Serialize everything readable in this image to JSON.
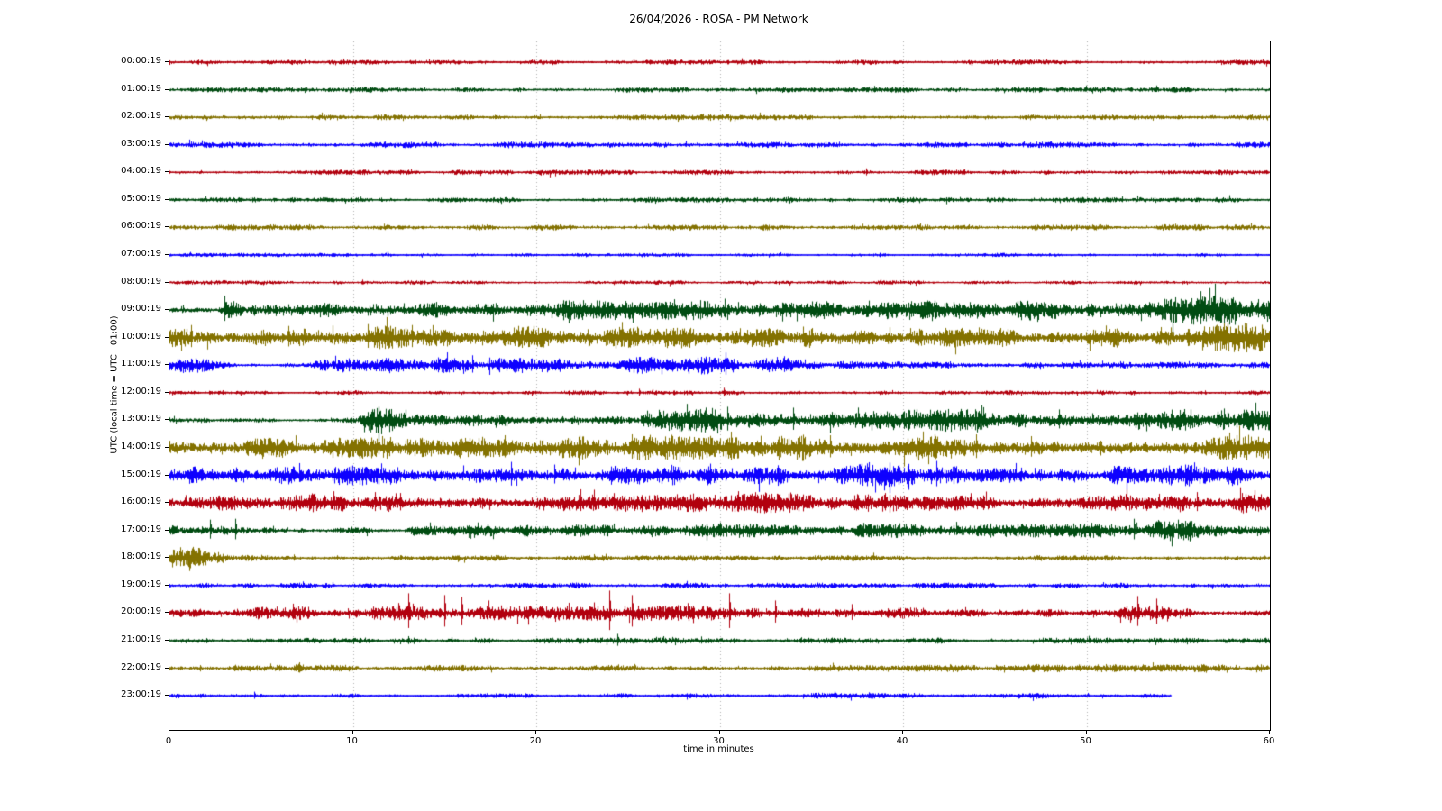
{
  "chart_data": {
    "type": "line",
    "subtype": "seismogram-helicorder-dayplot",
    "title": "26/04/2026 - ROSA - PM Network",
    "xlabel": "time in minutes",
    "ylabel": "UTC (local time = UTC - 01:00)",
    "xlim": [
      0,
      60
    ],
    "xticks": [
      0,
      10,
      20,
      30,
      40,
      50,
      60
    ],
    "grid": "vertical-dotted",
    "grid_color": "#b0b0b0",
    "trace_colors": [
      "#B2000F",
      "#004C12",
      "#847200",
      "#0E01FF"
    ],
    "rows": [
      {
        "label": "00:00:19",
        "color": 0,
        "end": 60,
        "env": [
          [
            0,
            2.1
          ],
          [
            60,
            2.1
          ]
        ],
        "spikes": []
      },
      {
        "label": "01:00:19",
        "color": 1,
        "end": 60,
        "env": [
          [
            0,
            2.2
          ],
          [
            60,
            2.2
          ]
        ],
        "spikes": []
      },
      {
        "label": "02:00:19",
        "color": 2,
        "end": 60,
        "env": [
          [
            0,
            2.2
          ],
          [
            60,
            2.2
          ]
        ],
        "spikes": []
      },
      {
        "label": "03:00:19",
        "color": 3,
        "end": 60,
        "env": [
          [
            0,
            2.5
          ],
          [
            60,
            2.5
          ]
        ],
        "spikes": []
      },
      {
        "label": "04:00:19",
        "color": 0,
        "end": 60,
        "env": [
          [
            0,
            2.1
          ],
          [
            60,
            2.1
          ]
        ],
        "spikes": [
          [
            38,
            4.5
          ]
        ]
      },
      {
        "label": "05:00:19",
        "color": 1,
        "end": 60,
        "env": [
          [
            0,
            2.1
          ],
          [
            32.5,
            2.1
          ],
          [
            33.5,
            3.6
          ],
          [
            34.5,
            2.1
          ],
          [
            60,
            2.1
          ]
        ],
        "spikes": []
      },
      {
        "label": "06:00:19",
        "color": 2,
        "end": 60,
        "env": [
          [
            0,
            2.4
          ],
          [
            60,
            2.4
          ]
        ],
        "spikes": []
      },
      {
        "label": "07:00:19",
        "color": 3,
        "end": 60,
        "env": [
          [
            0,
            1.7
          ],
          [
            60,
            1.7
          ]
        ],
        "spikes": []
      },
      {
        "label": "08:00:19",
        "color": 0,
        "end": 60,
        "env": [
          [
            0,
            1.7
          ],
          [
            60,
            1.7
          ]
        ],
        "spikes": []
      },
      {
        "label": "09:00:19",
        "color": 1,
        "end": 60,
        "env": [
          [
            0,
            3
          ],
          [
            2.6,
            3.5
          ],
          [
            3.2,
            11
          ],
          [
            4,
            6
          ],
          [
            8,
            6.5
          ],
          [
            14,
            7
          ],
          [
            20,
            7.5
          ],
          [
            26,
            8
          ],
          [
            31,
            7
          ],
          [
            36,
            7
          ],
          [
            42,
            7.5
          ],
          [
            47,
            8.5
          ],
          [
            51,
            9
          ],
          [
            55,
            11
          ],
          [
            57,
            12
          ],
          [
            60,
            13
          ]
        ],
        "spikes": [
          [
            3,
            16
          ],
          [
            27.5,
            12
          ],
          [
            56.2,
            21
          ],
          [
            58,
            14
          ]
        ]
      },
      {
        "label": "10:00:19",
        "color": 2,
        "end": 60,
        "env": [
          [
            0,
            9
          ],
          [
            2,
            8.5
          ],
          [
            5,
            9.5
          ],
          [
            9,
            10
          ],
          [
            13,
            9
          ],
          [
            18,
            8.5
          ],
          [
            23,
            9
          ],
          [
            28,
            8.5
          ],
          [
            33,
            9
          ],
          [
            38,
            8.5
          ],
          [
            44,
            8
          ],
          [
            50,
            8
          ],
          [
            55,
            9
          ],
          [
            58,
            11
          ],
          [
            60,
            13
          ]
        ],
        "spikes": [
          [
            1.2,
            14
          ],
          [
            6.5,
            13
          ],
          [
            10.8,
            15
          ],
          [
            13.2,
            14
          ],
          [
            19,
            13
          ],
          [
            25.5,
            12
          ],
          [
            57.5,
            16
          ]
        ]
      },
      {
        "label": "11:00:19",
        "color": 3,
        "end": 60,
        "env": [
          [
            0,
            6
          ],
          [
            3.2,
            5.5
          ],
          [
            3.8,
            2.2
          ],
          [
            7.6,
            2.2
          ],
          [
            8.4,
            5
          ],
          [
            12,
            6
          ],
          [
            17,
            6
          ],
          [
            22,
            6
          ],
          [
            27,
            6.5
          ],
          [
            30,
            7
          ],
          [
            33,
            6
          ],
          [
            35.5,
            4.5
          ],
          [
            37.5,
            3
          ],
          [
            40,
            2.7
          ],
          [
            60,
            2.7
          ]
        ],
        "spikes": [
          [
            16.5,
            11
          ],
          [
            30.3,
            14
          ],
          [
            33.5,
            10
          ]
        ]
      },
      {
        "label": "12:00:19",
        "color": 0,
        "end": 60,
        "env": [
          [
            0,
            1.9
          ],
          [
            60,
            1.9
          ]
        ],
        "spikes": [
          [
            25.6,
            4.5
          ],
          [
            30.2,
            5.5
          ]
        ]
      },
      {
        "label": "13:00:19",
        "color": 1,
        "end": 60,
        "env": [
          [
            0,
            2.1
          ],
          [
            10.2,
            2.1
          ],
          [
            10.8,
            10
          ],
          [
            12.5,
            11
          ],
          [
            14.5,
            8
          ],
          [
            18,
            7
          ],
          [
            20.5,
            4.5
          ],
          [
            25.5,
            4.5
          ],
          [
            27,
            9
          ],
          [
            30,
            10
          ],
          [
            33,
            9
          ],
          [
            36,
            8
          ],
          [
            40,
            8
          ],
          [
            44,
            9
          ],
          [
            48,
            7.5
          ],
          [
            52,
            7.5
          ],
          [
            56,
            8.5
          ],
          [
            60,
            10
          ]
        ],
        "spikes": [
          [
            11.4,
            15
          ],
          [
            30.4,
            15
          ],
          [
            34,
            14
          ],
          [
            48.5,
            12
          ],
          [
            57.5,
            13
          ]
        ]
      },
      {
        "label": "14:00:19",
        "color": 2,
        "end": 60,
        "env": [
          [
            0,
            7.5
          ],
          [
            3,
            8
          ],
          [
            8,
            8.5
          ],
          [
            12,
            9
          ],
          [
            16,
            8
          ],
          [
            21,
            9
          ],
          [
            25,
            10
          ],
          [
            28,
            10
          ],
          [
            31,
            9
          ],
          [
            34,
            10
          ],
          [
            38,
            9.5
          ],
          [
            42,
            10
          ],
          [
            46,
            9
          ],
          [
            50,
            8
          ],
          [
            54,
            8.5
          ],
          [
            60,
            10
          ]
        ],
        "spikes": [
          [
            18.3,
            14
          ],
          [
            25.2,
            15
          ],
          [
            30.6,
            18
          ],
          [
            36,
            14
          ],
          [
            44,
            15
          ],
          [
            47,
            13
          ],
          [
            58.2,
            14
          ]
        ]
      },
      {
        "label": "15:00:19",
        "color": 3,
        "end": 60,
        "env": [
          [
            0,
            7
          ],
          [
            6,
            7
          ],
          [
            11,
            7.5
          ],
          [
            15,
            8
          ],
          [
            18,
            10
          ],
          [
            20,
            8
          ],
          [
            25,
            7
          ],
          [
            28.5,
            9
          ],
          [
            31,
            8
          ],
          [
            35,
            7.5
          ],
          [
            40.5,
            10
          ],
          [
            43,
            8
          ],
          [
            47,
            7
          ],
          [
            51,
            7
          ],
          [
            55,
            8
          ],
          [
            60,
            8
          ]
        ],
        "spikes": [
          [
            18.6,
            15
          ],
          [
            21,
            12
          ],
          [
            29.5,
            13
          ],
          [
            41.8,
            16
          ],
          [
            55.4,
            12
          ]
        ]
      },
      {
        "label": "16:00:19",
        "color": 0,
        "end": 60,
        "env": [
          [
            0,
            5
          ],
          [
            4,
            6
          ],
          [
            7,
            7.5
          ],
          [
            11,
            8
          ],
          [
            14,
            7
          ],
          [
            18,
            6
          ],
          [
            23,
            6.5
          ],
          [
            27,
            7
          ],
          [
            30,
            8
          ],
          [
            33,
            8
          ],
          [
            37,
            7
          ],
          [
            41,
            6
          ],
          [
            46,
            6
          ],
          [
            51,
            6.5
          ],
          [
            55,
            7.5
          ],
          [
            58,
            8
          ],
          [
            60,
            7
          ]
        ],
        "spikes": [
          [
            11.2,
            12
          ],
          [
            12.6,
            11
          ],
          [
            31,
            13
          ],
          [
            39,
            11
          ],
          [
            56,
            12
          ],
          [
            58.5,
            11
          ]
        ]
      },
      {
        "label": "17:00:19",
        "color": 1,
        "end": 60,
        "env": [
          [
            0,
            6
          ],
          [
            1.6,
            7
          ],
          [
            2.6,
            5
          ],
          [
            4,
            2.6
          ],
          [
            12.5,
            2.6
          ],
          [
            13.5,
            5
          ],
          [
            19,
            5
          ],
          [
            25,
            5
          ],
          [
            31,
            5.5
          ],
          [
            36,
            5.5
          ],
          [
            38,
            6
          ],
          [
            42,
            5
          ],
          [
            47,
            5.5
          ],
          [
            50,
            6
          ],
          [
            52,
            8
          ],
          [
            54,
            9
          ],
          [
            56,
            8
          ],
          [
            58,
            6.5
          ],
          [
            60,
            7.5
          ]
        ],
        "spikes": [
          [
            2.2,
            12
          ],
          [
            3.6,
            13
          ],
          [
            30,
            9
          ],
          [
            52.6,
            13
          ],
          [
            55,
            12
          ]
        ]
      },
      {
        "label": "18:00:19",
        "color": 2,
        "end": 60,
        "env": [
          [
            0,
            8
          ],
          [
            1,
            9
          ],
          [
            2.2,
            7
          ],
          [
            3.5,
            5
          ],
          [
            4.6,
            2.3
          ],
          [
            60,
            2.3
          ]
        ],
        "spikes": [
          [
            0.6,
            12
          ],
          [
            1.6,
            11
          ],
          [
            6.8,
            4
          ]
        ]
      },
      {
        "label": "19:00:19",
        "color": 3,
        "end": 60,
        "env": [
          [
            0,
            2.3
          ],
          [
            60,
            2.3
          ]
        ],
        "spikes": []
      },
      {
        "label": "20:00:19",
        "color": 0,
        "end": 60,
        "env": [
          [
            0,
            3
          ],
          [
            2.5,
            3.5
          ],
          [
            4,
            5
          ],
          [
            8,
            5.5
          ],
          [
            12,
            6
          ],
          [
            16,
            6
          ],
          [
            20,
            5.5
          ],
          [
            24,
            6
          ],
          [
            28,
            6
          ],
          [
            31,
            6
          ],
          [
            34,
            5
          ],
          [
            38,
            5
          ],
          [
            41,
            4
          ],
          [
            43,
            3.2
          ],
          [
            48,
            3.2
          ],
          [
            51.5,
            3.4
          ],
          [
            52.5,
            6
          ],
          [
            55,
            6
          ],
          [
            56.5,
            3.2
          ],
          [
            60,
            3.2
          ]
        ],
        "spikes": [
          [
            13,
            22
          ],
          [
            15,
            20
          ],
          [
            15.9,
            18
          ],
          [
            24,
            25
          ],
          [
            25.2,
            20
          ],
          [
            30.5,
            22
          ],
          [
            33,
            14
          ],
          [
            37.2,
            10
          ],
          [
            52.8,
            19
          ],
          [
            53.8,
            16
          ]
        ]
      },
      {
        "label": "21:00:19",
        "color": 1,
        "end": 60,
        "env": [
          [
            0,
            2.3
          ],
          [
            60,
            2.3
          ]
        ],
        "spikes": [
          [
            13,
            5
          ],
          [
            24.4,
            7.5
          ]
        ]
      },
      {
        "label": "22:00:19",
        "color": 2,
        "end": 60,
        "env": [
          [
            0,
            2.6
          ],
          [
            6.7,
            2.6
          ],
          [
            7,
            4.5
          ],
          [
            7.5,
            2.6
          ],
          [
            40,
            2.6
          ],
          [
            44,
            3.1
          ],
          [
            60,
            3.1
          ]
        ],
        "spikes": [
          [
            7.1,
            6.5
          ]
        ]
      },
      {
        "label": "23:00:19",
        "color": 3,
        "end": 54.6,
        "env": [
          [
            0,
            2.3
          ],
          [
            54.6,
            2.3
          ]
        ],
        "spikes": [
          [
            4.6,
            4.5
          ]
        ]
      }
    ]
  }
}
